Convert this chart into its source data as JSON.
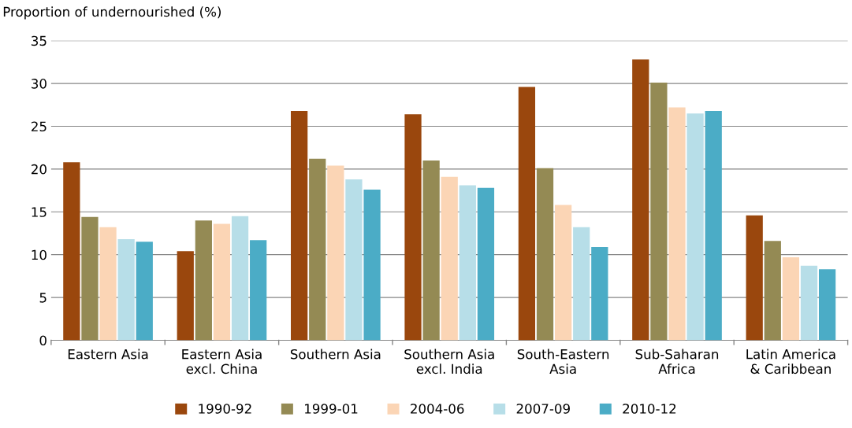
{
  "chart_data": {
    "type": "bar",
    "ylabel": "Proportion of undernourished (%)",
    "categories": [
      "Eastern Asia",
      "Eastern Asia\nexcl. China",
      "Southern Asia",
      "Southern Asia\nexcl. India",
      "South-Eastern\nAsia",
      "Sub-Saharan\nAfrica",
      "Latin America\n& Caribbean"
    ],
    "series": [
      {
        "name": "1990-92",
        "color": "#9a470d",
        "values": [
          20.8,
          10.4,
          26.8,
          26.4,
          29.6,
          32.8,
          14.6
        ]
      },
      {
        "name": "1999-01",
        "color": "#948a54",
        "values": [
          14.4,
          14.0,
          21.2,
          21.0,
          20.1,
          30.1,
          11.6
        ]
      },
      {
        "name": "2004-06",
        "color": "#fbd5b5",
        "values": [
          13.2,
          13.6,
          20.4,
          19.1,
          15.8,
          27.2,
          9.7
        ]
      },
      {
        "name": "2007-09",
        "color": "#b7dee8",
        "values": [
          11.8,
          14.5,
          18.8,
          18.1,
          13.2,
          26.5,
          8.7
        ]
      },
      {
        "name": "2010-12",
        "color": "#4bacc6",
        "values": [
          11.5,
          11.7,
          17.6,
          17.8,
          10.9,
          26.8,
          8.3
        ]
      }
    ],
    "ylim": [
      0,
      35
    ],
    "yticks": [
      0,
      5,
      10,
      15,
      20,
      25,
      30,
      35
    ],
    "grid": "y",
    "legend": "bottom"
  }
}
